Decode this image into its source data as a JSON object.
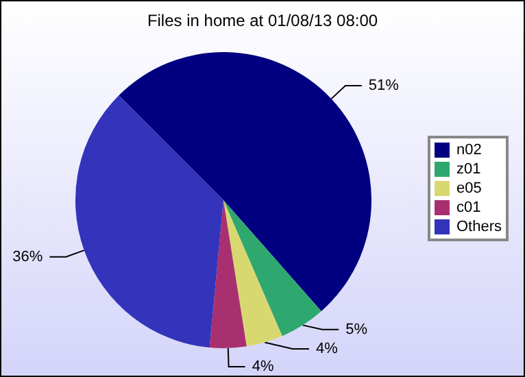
{
  "chart_data": {
    "type": "pie",
    "title": "Files in home at 01/08/13 08:00",
    "categories": [
      "n02",
      "z01",
      "e05",
      "c01",
      "Others"
    ],
    "values": [
      51,
      5,
      4,
      4,
      36
    ],
    "colors": [
      "#000080",
      "#2ea86e",
      "#d8d870",
      "#a83070",
      "#3333bb"
    ],
    "value_labels": [
      "51%",
      "5%",
      "4%",
      "4%",
      "36%"
    ],
    "legend": "right"
  }
}
